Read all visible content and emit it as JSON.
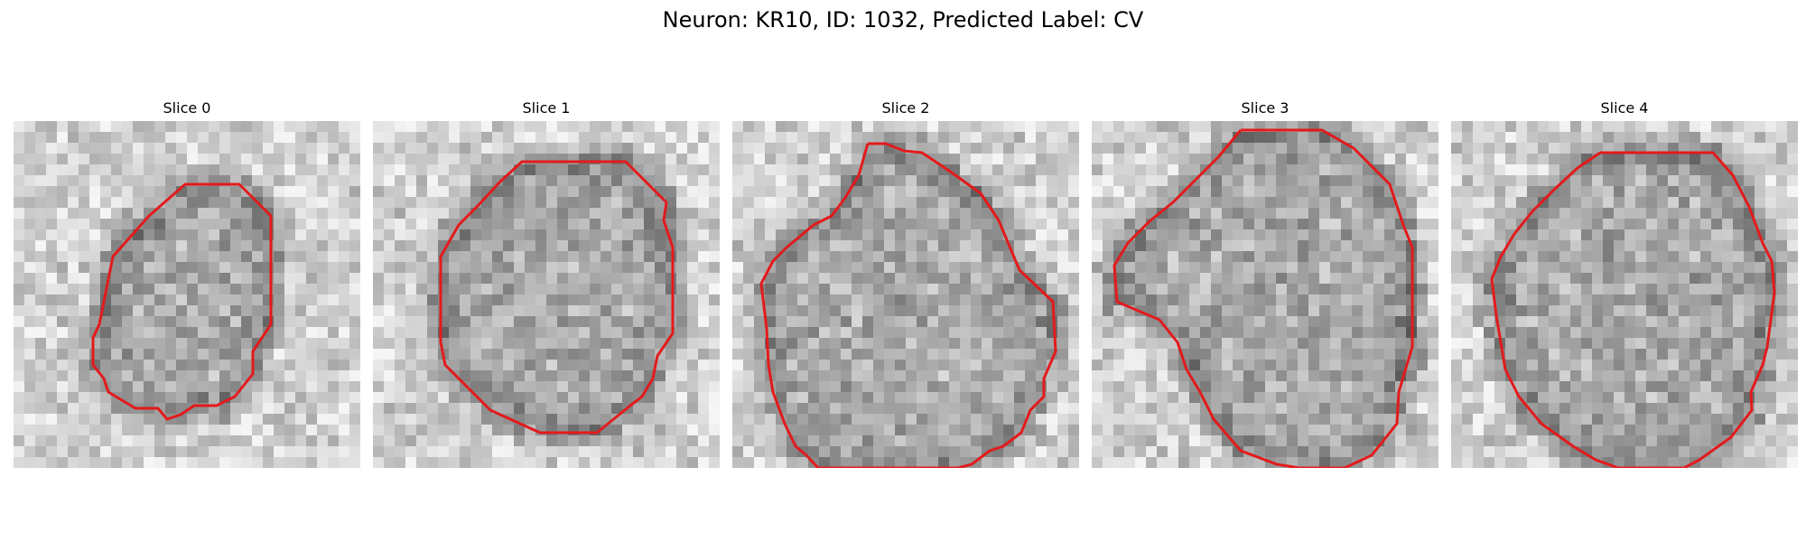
{
  "figure": {
    "title": "Neuron: KR10, ID: 1032, Predicted Label: CV",
    "contour_color": "#e31a1c",
    "colormap": "gray"
  },
  "panels": [
    {
      "title": "Slice 0"
    },
    {
      "title": "Slice 1"
    },
    {
      "title": "Slice 2"
    },
    {
      "title": "Slice 3"
    },
    {
      "title": "Slice 4"
    }
  ]
}
